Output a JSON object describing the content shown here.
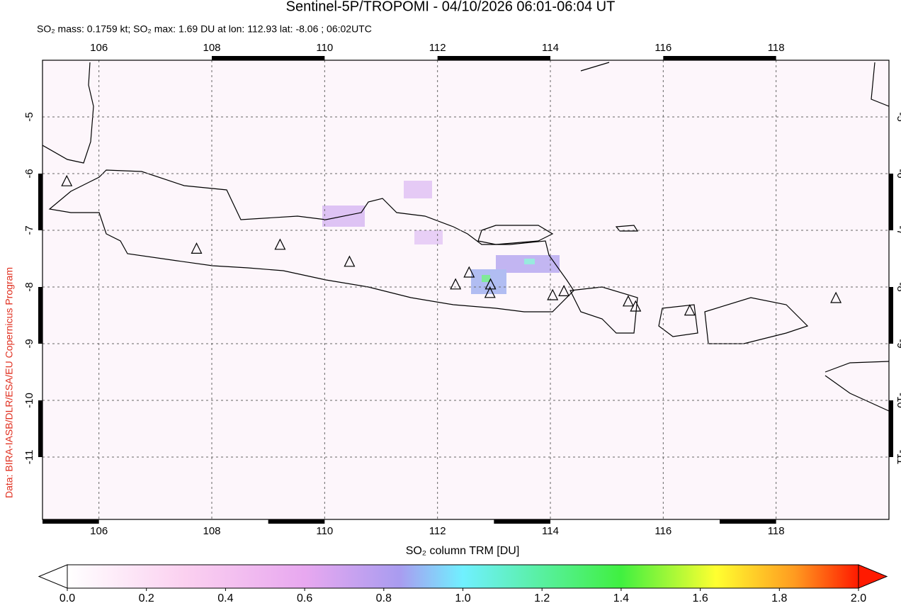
{
  "header": {
    "title": "Sentinel-5P/TROPOMI - 04/10/2026 06:01-06:04 UT",
    "subtitle": "SO₂ mass: 0.1759 kt; SO₂ max: 1.69 DU at lon: 112.93 lat: -8.06 ; 06:02UTC"
  },
  "credit": "Data: BIRA-IASB/DLR/ESA/EU Copernicus Program",
  "map": {
    "xlim": [
      105,
      120
    ],
    "ylim": [
      -12.1,
      -4
    ],
    "xticks": [
      106,
      108,
      110,
      112,
      114,
      116,
      118
    ],
    "yticks": [
      -5,
      -6,
      -7,
      -8,
      -9,
      -10,
      -11
    ],
    "grid": true,
    "volcanoes": {
      "lon": [
        105.43,
        107.73,
        109.21,
        110.44,
        112.32,
        112.56,
        112.94,
        112.93,
        114.04,
        114.24,
        115.38,
        115.51,
        116.47,
        119.06
      ],
      "lat": [
        -6.14,
        -7.33,
        -7.26,
        -7.56,
        -7.96,
        -7.75,
        -7.96,
        -8.11,
        -8.15,
        -8.08,
        -8.26,
        -8.35,
        -8.42,
        -8.2
      ]
    }
  },
  "colorbar": {
    "label": "SO₂ column TRM [DU]",
    "lim": [
      0,
      2
    ],
    "ticks": [
      {
        "value": 0,
        "label": "0.0"
      },
      0.2,
      0.4,
      0.6,
      0.8,
      {
        "value": 1,
        "label": "1.0"
      },
      1.2,
      1.4,
      1.6,
      1.8,
      {
        "value": 2,
        "label": "2.0"
      }
    ]
  }
}
